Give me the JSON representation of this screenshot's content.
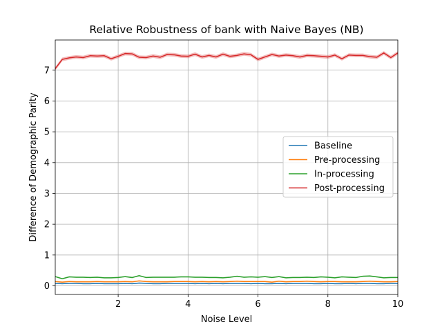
{
  "chart_data": {
    "type": "line",
    "title": "Relative Robustness of bank with Naive Bayes (NB)",
    "xlabel": "Noise Level",
    "ylabel": "Difference of Demographic Parity",
    "xlim": [
      0.2,
      10
    ],
    "ylim": [
      -0.28,
      7.98
    ],
    "xticks": [
      2,
      4,
      6,
      8,
      10
    ],
    "yticks": [
      0,
      1,
      2,
      3,
      4,
      5,
      6,
      7
    ],
    "grid": true,
    "legend_position": "center-right",
    "x": [
      0.2,
      0.4,
      0.6,
      0.8,
      1.0,
      1.2,
      1.4,
      1.6,
      1.8,
      2.0,
      2.2,
      2.4,
      2.6,
      2.8,
      3.0,
      3.2,
      3.4,
      3.6,
      3.8,
      4.0,
      4.2,
      4.4,
      4.6,
      4.8,
      5.0,
      5.2,
      5.4,
      5.6,
      5.8,
      6.0,
      6.2,
      6.4,
      6.6,
      6.8,
      7.0,
      7.2,
      7.4,
      7.6,
      7.8,
      8.0,
      8.2,
      8.4,
      8.6,
      8.8,
      9.0,
      9.2,
      9.4,
      9.6,
      9.8,
      10.0
    ],
    "series": [
      {
        "name": "Baseline",
        "color": "#1f77b4",
        "values": [
          0.08,
          0.07,
          0.08,
          0.08,
          0.07,
          0.07,
          0.08,
          0.07,
          0.07,
          0.07,
          0.08,
          0.07,
          0.09,
          0.08,
          0.07,
          0.07,
          0.08,
          0.08,
          0.08,
          0.08,
          0.07,
          0.08,
          0.07,
          0.08,
          0.07,
          0.08,
          0.08,
          0.08,
          0.07,
          0.08,
          0.07,
          0.07,
          0.08,
          0.07,
          0.08,
          0.08,
          0.08,
          0.07,
          0.07,
          0.08,
          0.07,
          0.07,
          0.08,
          0.07,
          0.08,
          0.08,
          0.07,
          0.07,
          0.08,
          0.08
        ]
      },
      {
        "name": "Pre-processing",
        "color": "#ff7f0e",
        "values": [
          0.14,
          0.12,
          0.14,
          0.13,
          0.13,
          0.13,
          0.14,
          0.13,
          0.13,
          0.13,
          0.14,
          0.13,
          0.16,
          0.14,
          0.13,
          0.13,
          0.13,
          0.14,
          0.14,
          0.14,
          0.13,
          0.14,
          0.13,
          0.14,
          0.13,
          0.14,
          0.15,
          0.14,
          0.14,
          0.14,
          0.14,
          0.12,
          0.15,
          0.13,
          0.14,
          0.14,
          0.15,
          0.14,
          0.13,
          0.14,
          0.14,
          0.13,
          0.13,
          0.13,
          0.14,
          0.15,
          0.14,
          0.13,
          0.13,
          0.14
        ]
      },
      {
        "name": "In-processing",
        "color": "#2ca02c",
        "values": [
          0.3,
          0.23,
          0.29,
          0.28,
          0.28,
          0.27,
          0.28,
          0.26,
          0.26,
          0.27,
          0.3,
          0.27,
          0.33,
          0.27,
          0.28,
          0.28,
          0.28,
          0.28,
          0.29,
          0.29,
          0.28,
          0.28,
          0.27,
          0.27,
          0.26,
          0.28,
          0.31,
          0.28,
          0.29,
          0.28,
          0.3,
          0.27,
          0.3,
          0.26,
          0.27,
          0.27,
          0.28,
          0.27,
          0.29,
          0.28,
          0.26,
          0.29,
          0.28,
          0.27,
          0.31,
          0.32,
          0.29,
          0.26,
          0.27,
          0.27
        ]
      },
      {
        "name": "Post-processing",
        "color": "#d62728",
        "values": [
          7.05,
          7.35,
          7.4,
          7.43,
          7.41,
          7.47,
          7.46,
          7.47,
          7.37,
          7.45,
          7.54,
          7.53,
          7.42,
          7.41,
          7.46,
          7.42,
          7.51,
          7.5,
          7.46,
          7.45,
          7.52,
          7.43,
          7.48,
          7.43,
          7.52,
          7.45,
          7.48,
          7.53,
          7.5,
          7.35,
          7.43,
          7.51,
          7.46,
          7.49,
          7.47,
          7.43,
          7.48,
          7.47,
          7.45,
          7.43,
          7.49,
          7.37,
          7.49,
          7.48,
          7.48,
          7.44,
          7.42,
          7.56,
          7.41,
          7.56
        ]
      }
    ]
  }
}
